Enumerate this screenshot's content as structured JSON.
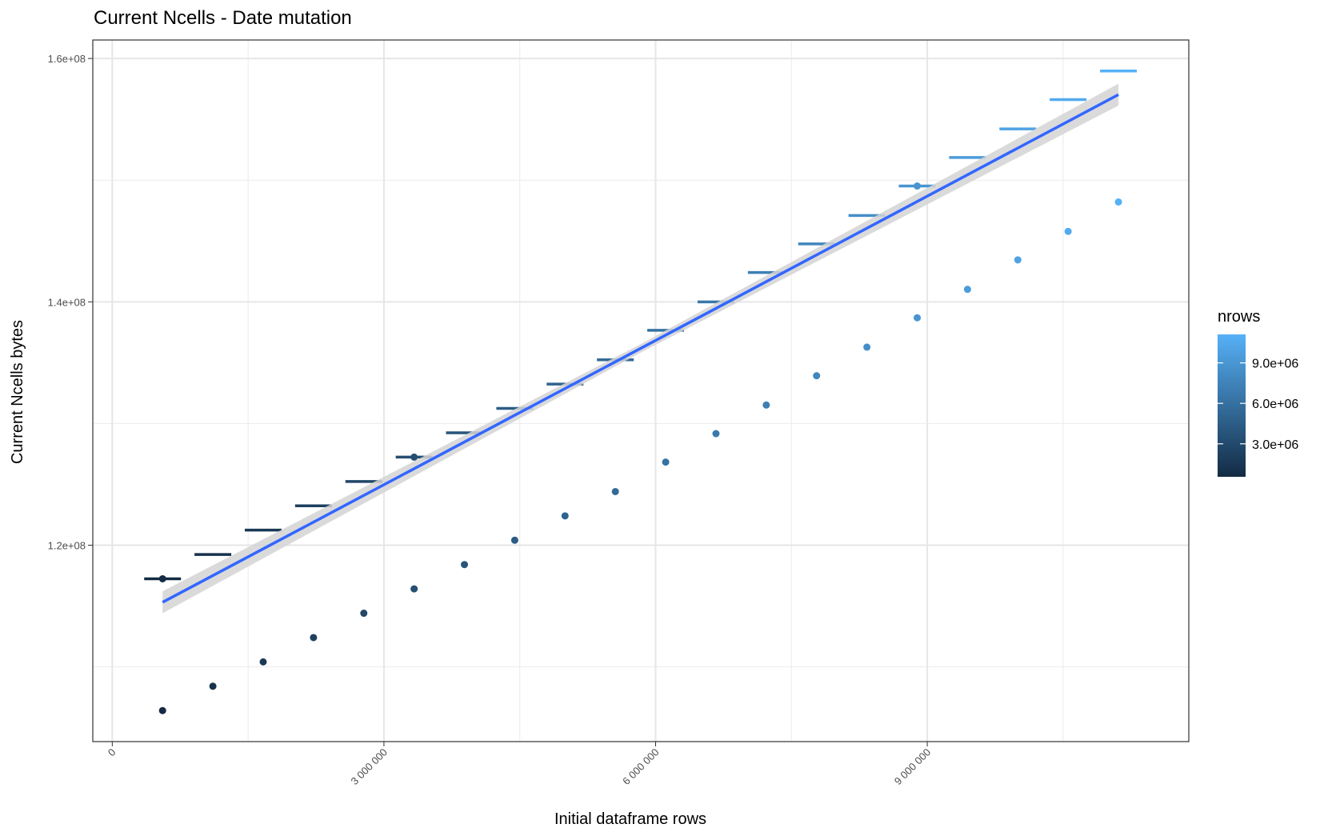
{
  "chart_data": {
    "type": "scatter",
    "title": "Current Ncells - Date mutation",
    "x_label": "Initial dataframe rows",
    "y_label": "Current Ncells bytes",
    "x": [
      555556,
      1111111,
      1666667,
      2222222,
      2777778,
      3333333,
      3888889,
      4444444,
      5000000,
      5555556,
      6111111,
      6666667,
      7222222,
      7777778,
      8333333,
      8888889,
      9444444,
      10000000,
      10555556,
      11111111
    ],
    "series": [
      {
        "style": "segment",
        "values": [
          117240000,
          119240000,
          121240000,
          123240000,
          125240000,
          127240000,
          129240000,
          131240000,
          133240000,
          135240000,
          137660000,
          140000000,
          142410000,
          144760000,
          147100000,
          149520000,
          151860000,
          154210000,
          156620000,
          158970000
        ]
      },
      {
        "style": "point",
        "values": [
          106410000,
          108410000,
          110410000,
          112410000,
          114410000,
          116410000,
          118410000,
          120410000,
          122410000,
          124410000,
          126830000,
          129170000,
          131520000,
          133930000,
          136280000,
          138690000,
          141030000,
          143450000,
          145790000,
          148210000
        ]
      },
      {
        "style": "point",
        "x": [
          555556,
          3333333,
          8888889
        ],
        "values": [
          117240000,
          127240000,
          149520000
        ]
      }
    ],
    "fit": {
      "color": "#3366ff",
      "band_color": "#d3d3d3",
      "x": [
        555556,
        5833333,
        11111111
      ],
      "values": [
        115310000,
        136170000,
        157030000
      ],
      "lower": [
        114410000,
        135820000,
        156130000
      ],
      "upper": [
        116210000,
        136520000,
        157930000
      ]
    },
    "color_scale": {
      "title": "nrows",
      "low": "#132b43",
      "high": "#56b1f7",
      "limits": [
        555556,
        11111111
      ],
      "ticks": [
        {
          "value": 3000000,
          "label": "3.0e+06"
        },
        {
          "value": 6000000,
          "label": "6.0e+06"
        },
        {
          "value": 9000000,
          "label": "9.0e+06"
        }
      ]
    },
    "xlim": [
      -215000,
      11888000
    ],
    "ylim": [
      103860000,
      161520000
    ],
    "xticks": [
      0,
      {
        "value": 3000000,
        "label": "3 000 000"
      },
      {
        "value": 6000000,
        "label": "6 000 000"
      },
      {
        "value": 9000000,
        "label": "9 000 000"
      }
    ],
    "yticks": [
      {
        "value": 120000000,
        "label": "1.2e+08"
      },
      {
        "value": 140000000,
        "label": "1.4e+08"
      },
      {
        "value": 160000000,
        "label": "1.6e+08"
      }
    ],
    "x_minor_ticks": [
      1500000,
      4500000,
      7500000,
      10500000
    ],
    "y_minor_ticks": [
      110000000,
      130000000,
      150000000
    ],
    "grid": true
  }
}
